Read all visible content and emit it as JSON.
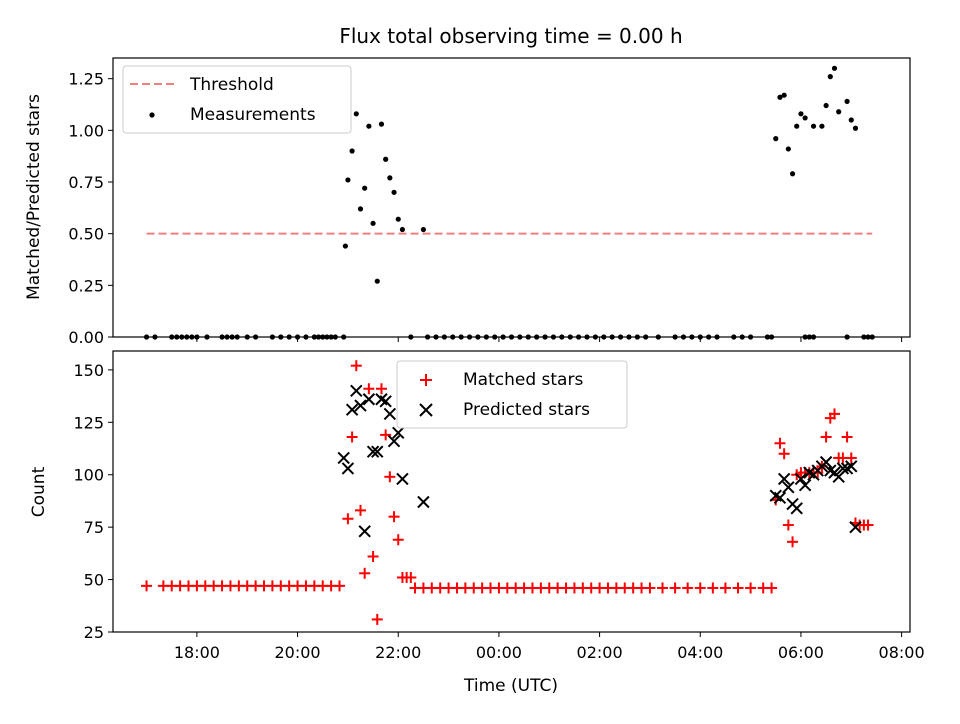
{
  "figure_title": "Flux total observing time = 0.00 h",
  "colors": {
    "threshold": "#f08080",
    "measurement": "#000000",
    "matched": "#ff0000",
    "predicted": "#000000"
  },
  "chart_data": [
    {
      "type": "scatter",
      "title": "Flux total observing time = 0.00 h",
      "xlabel": "",
      "ylabel": "Matched/Predicted stars",
      "xlim": [
        "16:20",
        "08:10"
      ],
      "ylim": [
        0,
        1.35
      ],
      "x_ticks": [
        "18:00",
        "20:00",
        "22:00",
        "00:00",
        "02:00",
        "04:00",
        "06:00",
        "08:00"
      ],
      "y_ticks": [
        "0.00",
        "0.25",
        "0.50",
        "0.75",
        "1.00",
        "1.25"
      ],
      "legend": {
        "position": "top-left",
        "entries": [
          "Threshold",
          "Measurements"
        ]
      },
      "threshold": {
        "name": "Threshold",
        "y": 0.5,
        "x_range": [
          "17:00",
          "07:25"
        ],
        "style": "dashed"
      },
      "series": [
        {
          "name": "Measurements",
          "marker": "dot",
          "points": [
            [
              "17:00",
              0
            ],
            [
              "17:10",
              0
            ],
            [
              "17:30",
              0
            ],
            [
              "17:36",
              0
            ],
            [
              "17:42",
              0
            ],
            [
              "17:48",
              0
            ],
            [
              "17:54",
              0
            ],
            [
              "18:00",
              0
            ],
            [
              "18:12",
              0
            ],
            [
              "18:30",
              0
            ],
            [
              "18:36",
              0
            ],
            [
              "18:42",
              0
            ],
            [
              "18:48",
              0
            ],
            [
              "19:00",
              0
            ],
            [
              "19:10",
              0
            ],
            [
              "19:30",
              0
            ],
            [
              "19:40",
              0
            ],
            [
              "19:50",
              0
            ],
            [
              "20:00",
              0
            ],
            [
              "20:10",
              0
            ],
            [
              "20:20",
              0
            ],
            [
              "20:25",
              0
            ],
            [
              "20:30",
              0
            ],
            [
              "20:35",
              0
            ],
            [
              "20:40",
              0
            ],
            [
              "20:45",
              0
            ],
            [
              "20:55",
              0
            ],
            [
              "20:57",
              0.44
            ],
            [
              "21:00",
              0.76
            ],
            [
              "21:05",
              0.9
            ],
            [
              "21:10",
              1.08
            ],
            [
              "21:15",
              0.62
            ],
            [
              "21:20",
              0.72
            ],
            [
              "21:25",
              1.02
            ],
            [
              "21:30",
              0.55
            ],
            [
              "21:35",
              0.27
            ],
            [
              "21:40",
              1.03
            ],
            [
              "21:45",
              0.86
            ],
            [
              "21:50",
              0.77
            ],
            [
              "21:55",
              0.7
            ],
            [
              "22:00",
              0.57
            ],
            [
              "22:05",
              0.52
            ],
            [
              "22:30",
              0.52
            ],
            [
              "22:15",
              0
            ],
            [
              "22:35",
              0
            ],
            [
              "22:45",
              0
            ],
            [
              "22:55",
              0
            ],
            [
              "23:05",
              0
            ],
            [
              "23:15",
              0
            ],
            [
              "23:25",
              0
            ],
            [
              "23:35",
              0
            ],
            [
              "23:45",
              0
            ],
            [
              "23:55",
              0
            ],
            [
              "00:05",
              0
            ],
            [
              "00:15",
              0
            ],
            [
              "00:25",
              0
            ],
            [
              "00:35",
              0
            ],
            [
              "00:45",
              0
            ],
            [
              "00:55",
              0
            ],
            [
              "01:05",
              0
            ],
            [
              "01:15",
              0
            ],
            [
              "01:25",
              0
            ],
            [
              "01:35",
              0
            ],
            [
              "01:45",
              0
            ],
            [
              "01:55",
              0
            ],
            [
              "02:05",
              0
            ],
            [
              "02:15",
              0
            ],
            [
              "02:25",
              0
            ],
            [
              "02:35",
              0
            ],
            [
              "02:45",
              0
            ],
            [
              "02:55",
              0
            ],
            [
              "03:10",
              0
            ],
            [
              "03:30",
              0
            ],
            [
              "03:40",
              0
            ],
            [
              "03:50",
              0
            ],
            [
              "04:00",
              0
            ],
            [
              "04:10",
              0
            ],
            [
              "04:20",
              0
            ],
            [
              "04:40",
              0
            ],
            [
              "04:50",
              0
            ],
            [
              "05:00",
              0
            ],
            [
              "05:20",
              0
            ],
            [
              "05:25",
              0
            ],
            [
              "06:05",
              0
            ],
            [
              "06:10",
              0
            ],
            [
              "06:15",
              0
            ],
            [
              "06:55",
              0
            ],
            [
              "07:15",
              0
            ],
            [
              "07:20",
              0
            ],
            [
              "07:25",
              0
            ],
            [
              "05:30",
              0.96
            ],
            [
              "05:35",
              1.16
            ],
            [
              "05:40",
              1.17
            ],
            [
              "05:45",
              0.91
            ],
            [
              "05:50",
              0.79
            ],
            [
              "05:55",
              1.02
            ],
            [
              "06:00",
              1.08
            ],
            [
              "06:05",
              1.06
            ],
            [
              "06:15",
              1.02
            ],
            [
              "06:25",
              1.02
            ],
            [
              "06:30",
              1.12
            ],
            [
              "06:35",
              1.26
            ],
            [
              "06:40",
              1.3
            ],
            [
              "06:45",
              1.09
            ],
            [
              "06:55",
              1.14
            ],
            [
              "07:00",
              1.05
            ],
            [
              "07:05",
              1.01
            ]
          ]
        }
      ]
    },
    {
      "type": "scatter",
      "title": "",
      "xlabel": "Time (UTC)",
      "ylabel": "Count",
      "xlim": [
        "16:20",
        "08:10"
      ],
      "ylim": [
        25,
        159
      ],
      "x_ticks": [
        "18:00",
        "20:00",
        "22:00",
        "00:00",
        "02:00",
        "04:00",
        "06:00",
        "08:00"
      ],
      "y_ticks": [
        "25",
        "50",
        "75",
        "100",
        "125",
        "150"
      ],
      "legend": {
        "position": "top-center",
        "entries": [
          "Matched stars",
          "Predicted stars"
        ]
      },
      "series": [
        {
          "name": "Matched stars",
          "marker": "plus",
          "points": [
            [
              "17:00",
              47
            ],
            [
              "17:20",
              47
            ],
            [
              "17:30",
              47
            ],
            [
              "17:40",
              47
            ],
            [
              "17:50",
              47
            ],
            [
              "18:00",
              47
            ],
            [
              "18:10",
              47
            ],
            [
              "18:20",
              47
            ],
            [
              "18:30",
              47
            ],
            [
              "18:40",
              47
            ],
            [
              "18:50",
              47
            ],
            [
              "19:00",
              47
            ],
            [
              "19:10",
              47
            ],
            [
              "19:20",
              47
            ],
            [
              "19:30",
              47
            ],
            [
              "19:40",
              47
            ],
            [
              "19:50",
              47
            ],
            [
              "20:00",
              47
            ],
            [
              "20:10",
              47
            ],
            [
              "20:20",
              47
            ],
            [
              "20:30",
              47
            ],
            [
              "20:40",
              47
            ],
            [
              "20:50",
              47
            ],
            [
              "21:00",
              79
            ],
            [
              "21:05",
              118
            ],
            [
              "21:10",
              152
            ],
            [
              "21:15",
              83
            ],
            [
              "21:20",
              53
            ],
            [
              "21:25",
              141
            ],
            [
              "21:30",
              61
            ],
            [
              "21:35",
              31
            ],
            [
              "21:40",
              141
            ],
            [
              "21:45",
              119
            ],
            [
              "21:50",
              99
            ],
            [
              "21:55",
              80
            ],
            [
              "22:00",
              69
            ],
            [
              "22:05",
              51
            ],
            [
              "22:10",
              51
            ],
            [
              "22:15",
              51
            ],
            [
              "22:20",
              46
            ],
            [
              "22:30",
              46
            ],
            [
              "22:40",
              46
            ],
            [
              "22:50",
              46
            ],
            [
              "23:00",
              46
            ],
            [
              "23:10",
              46
            ],
            [
              "23:20",
              46
            ],
            [
              "23:30",
              46
            ],
            [
              "23:40",
              46
            ],
            [
              "23:50",
              46
            ],
            [
              "00:00",
              46
            ],
            [
              "00:10",
              46
            ],
            [
              "00:20",
              46
            ],
            [
              "00:30",
              46
            ],
            [
              "00:40",
              46
            ],
            [
              "00:50",
              46
            ],
            [
              "01:00",
              46
            ],
            [
              "01:10",
              46
            ],
            [
              "01:20",
              46
            ],
            [
              "01:30",
              46
            ],
            [
              "01:40",
              46
            ],
            [
              "01:50",
              46
            ],
            [
              "02:00",
              46
            ],
            [
              "02:10",
              46
            ],
            [
              "02:20",
              46
            ],
            [
              "02:30",
              46
            ],
            [
              "02:40",
              46
            ],
            [
              "02:50",
              46
            ],
            [
              "03:00",
              46
            ],
            [
              "03:15",
              46
            ],
            [
              "03:30",
              46
            ],
            [
              "03:45",
              46
            ],
            [
              "04:00",
              46
            ],
            [
              "04:15",
              46
            ],
            [
              "04:30",
              46
            ],
            [
              "04:45",
              46
            ],
            [
              "05:00",
              46
            ],
            [
              "05:15",
              46
            ],
            [
              "05:25",
              46
            ],
            [
              "05:30",
              88
            ],
            [
              "05:35",
              115
            ],
            [
              "05:40",
              110
            ],
            [
              "05:45",
              76
            ],
            [
              "05:50",
              68
            ],
            [
              "05:55",
              100
            ],
            [
              "06:00",
              101
            ],
            [
              "06:05",
              101
            ],
            [
              "06:10",
              101
            ],
            [
              "06:15",
              101
            ],
            [
              "06:20",
              101
            ],
            [
              "06:25",
              104
            ],
            [
              "06:30",
              118
            ],
            [
              "06:35",
              127
            ],
            [
              "06:40",
              129
            ],
            [
              "06:45",
              108
            ],
            [
              "06:50",
              108
            ],
            [
              "06:55",
              118
            ],
            [
              "07:00",
              108
            ],
            [
              "07:05",
              77
            ],
            [
              "07:10",
              76
            ],
            [
              "07:15",
              76
            ],
            [
              "07:20",
              76
            ]
          ]
        },
        {
          "name": "Predicted stars",
          "marker": "x",
          "points": [
            [
              "20:55",
              108
            ],
            [
              "21:00",
              103
            ],
            [
              "21:05",
              131
            ],
            [
              "21:10",
              140
            ],
            [
              "21:15",
              133
            ],
            [
              "21:20",
              73
            ],
            [
              "21:25",
              136
            ],
            [
              "21:30",
              111
            ],
            [
              "21:35",
              111
            ],
            [
              "21:40",
              136
            ],
            [
              "21:45",
              135
            ],
            [
              "21:50",
              129
            ],
            [
              "21:55",
              116
            ],
            [
              "22:00",
              120
            ],
            [
              "22:05",
              98
            ],
            [
              "22:30",
              87
            ],
            [
              "05:30",
              90
            ],
            [
              "05:35",
              89
            ],
            [
              "05:40",
              98
            ],
            [
              "05:45",
              94
            ],
            [
              "05:50",
              86
            ],
            [
              "05:55",
              84
            ],
            [
              "06:00",
              98
            ],
            [
              "06:05",
              95
            ],
            [
              "06:10",
              101
            ],
            [
              "06:15",
              100
            ],
            [
              "06:20",
              102
            ],
            [
              "06:25",
              104
            ],
            [
              "06:30",
              106
            ],
            [
              "06:35",
              102
            ],
            [
              "06:40",
              101
            ],
            [
              "06:45",
              99
            ],
            [
              "06:50",
              103
            ],
            [
              "06:55",
              103
            ],
            [
              "07:00",
              104
            ],
            [
              "07:05",
              75
            ]
          ]
        }
      ]
    }
  ]
}
